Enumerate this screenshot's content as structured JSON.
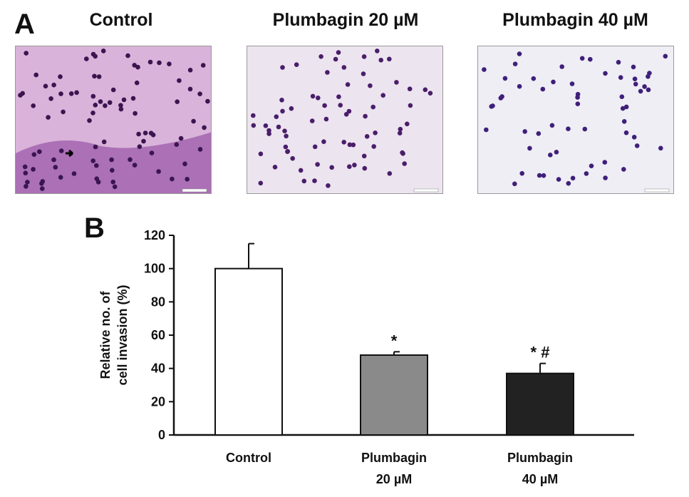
{
  "panel_a": {
    "letter": "A",
    "images": [
      {
        "title": "Control",
        "bg": "#d9b3d9",
        "dot": "#3a1550",
        "dots": 90
      },
      {
        "title": "Plumbagin 20 µM",
        "bg": "#ece4ef",
        "dot": "#4a1e6a",
        "dots": 75
      },
      {
        "title": "Plumbagin 40 µM",
        "bg": "#eeeef4",
        "dot": "#3f1f7a",
        "dots": 60
      }
    ]
  },
  "panel_b": {
    "letter": "B"
  },
  "chart_data": {
    "type": "bar",
    "categories": [
      [
        "Control"
      ],
      [
        "Plumbagin",
        "20 µM"
      ],
      [
        "Plumbagin",
        "40 µM"
      ]
    ],
    "values": [
      100,
      48,
      37
    ],
    "errors": [
      15,
      2,
      6
    ],
    "significance": [
      "",
      "*",
      "* #"
    ],
    "colors": [
      "#ffffff",
      "#8a8a8a",
      "#222222"
    ],
    "ylabel": [
      "Relative no. of",
      "cell invasion (%)"
    ],
    "ylim": [
      0,
      120
    ],
    "yticks": [
      0,
      20,
      40,
      60,
      80,
      100,
      120
    ]
  }
}
